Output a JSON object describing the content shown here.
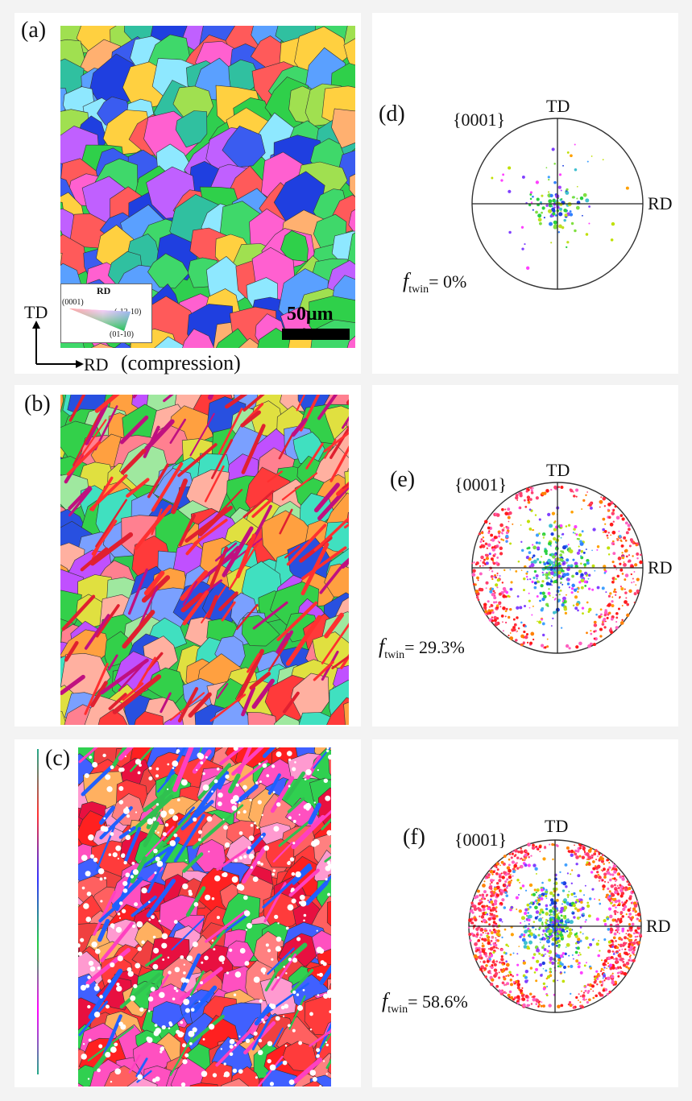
{
  "panels": {
    "a": {
      "label": "(a)"
    },
    "b": {
      "label": "(b)"
    },
    "c": {
      "label": "(c)"
    },
    "d": {
      "label": "(d)",
      "plane": "{0001}",
      "td": "TD",
      "rd": "RD",
      "f_symbol": "f",
      "f_sub": "twin",
      "f_value": "= 0%"
    },
    "e": {
      "label": "(e)",
      "plane": "{0001}",
      "td": "TD",
      "rd": "RD",
      "f_symbol": "f",
      "f_sub": "twin",
      "f_value": "= 29.3%"
    },
    "f": {
      "label": "(f)",
      "plane": "{0001}",
      "td": "TD",
      "rd": "RD",
      "f_symbol": "f",
      "f_sub": "twin",
      "f_value": "= 58.6%"
    }
  },
  "scale_bar": {
    "label": "50μm"
  },
  "legend": {
    "title": "RD",
    "corner_0001": "(0001)",
    "corner_12": "(-12-10)",
    "corner_01": "(01-10)"
  },
  "axes": {
    "td": "TD",
    "rd": "RD",
    "note": "(compression)"
  },
  "twin_fraction_percent": {
    "d": 0,
    "e": 29.3,
    "f": 58.6
  }
}
